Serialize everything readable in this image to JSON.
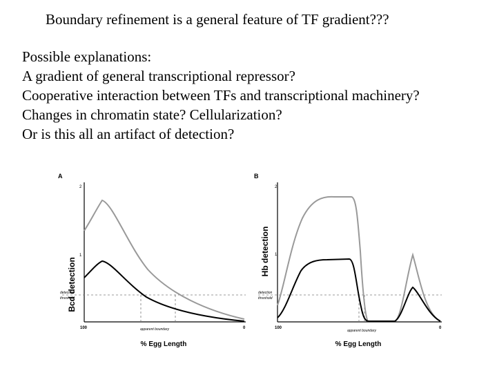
{
  "slide": {
    "title": "Boundary refinement is a general feature of TF gradient???",
    "lines": [
      "Possible explanations:",
      "A gradient of general transcriptional repressor?",
      "Cooperative interaction between TFs and transcriptional machinery?",
      "Changes in chromatin state?  Cellularization?",
      "Or is this all an artifact of detection?"
    ]
  },
  "panels": [
    {
      "letter": "A",
      "ylabel": "Bcd detection",
      "xlabel": "% Egg Length",
      "y_ticks": [
        "2",
        "1"
      ],
      "x_ticks": [
        "100",
        "0"
      ],
      "threshold_label": [
        "detection",
        "threshold"
      ],
      "boundary_label": "apparent boundary"
    },
    {
      "letter": "B",
      "ylabel": "Hb detection",
      "xlabel": "% Egg Length",
      "y_ticks": [
        "2",
        "1"
      ],
      "x_ticks": [
        "100",
        "0"
      ],
      "threshold_label": [
        "detection",
        "threshold"
      ],
      "boundary_label": "apparent boundary"
    }
  ],
  "colors": {
    "upper_curve": "#999999",
    "lower_curve": "#000000",
    "guides": "#777777"
  }
}
